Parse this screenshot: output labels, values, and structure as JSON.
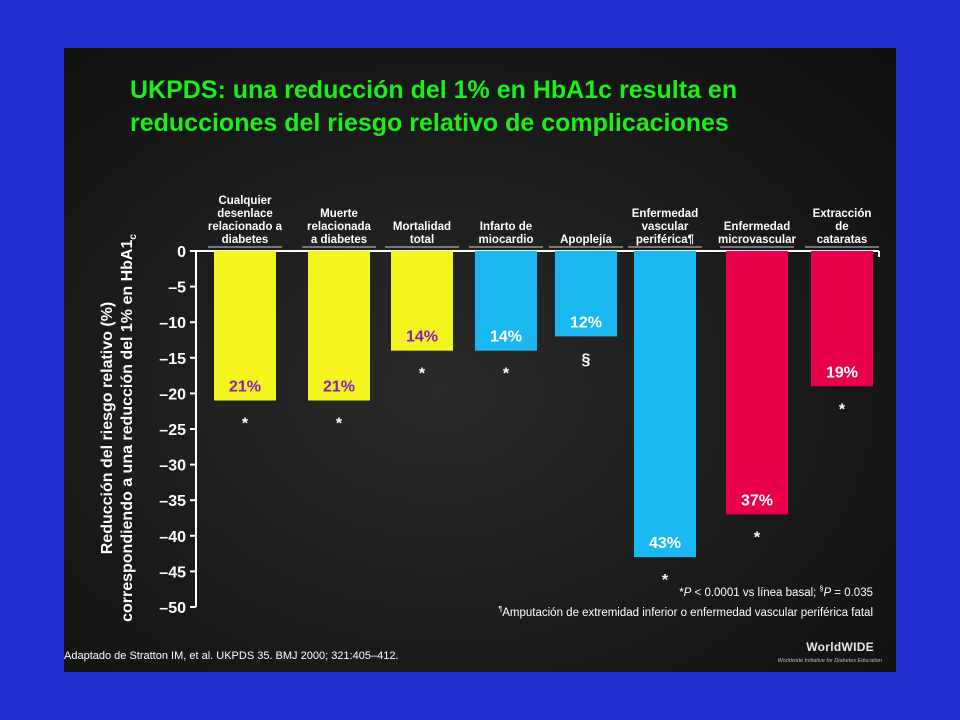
{
  "slide": {
    "title": "UKPDS: una reducción del 1% en HbA1c resulta en reducciones del riesgo relativo de complicaciones",
    "footnote_line1": "*P < 0.0001 vs línea basal; §P = 0.035",
    "footnote_line2": "¶Amputación de extremidad inferior o enfermedad vascular periférica fatal",
    "source": "Adaptado de Stratton IM, et al. UKPDS 35. BMJ 2000; 321:405–412.",
    "logo_text": "WorldWIDE",
    "logo_tagline": "Worldwide Initiative for Diabetes Education"
  },
  "chart_data": {
    "type": "bar",
    "title": "UKPDS: una reducción del 1% en HbA1c resulta en reducciones del riesgo relativo de complicaciones",
    "ylabel": "Reducción del riesgo relativo (%) correspondiendo a una reducción del 1% en HbA1c",
    "ylim": [
      -50,
      0
    ],
    "yticks": [
      0,
      -5,
      -10,
      -15,
      -20,
      -25,
      -30,
      -35,
      -40,
      -45,
      -50
    ],
    "ytick_labels": [
      "0",
      "–5",
      "–10",
      "–15",
      "–20",
      "–25",
      "–30",
      "–35",
      "–40",
      "–45",
      "–50"
    ],
    "categories": [
      [
        "Cualquier",
        "desenlace",
        "relacionado a",
        "diabetes"
      ],
      [
        "Muerte",
        "relacionada",
        "a diabetes"
      ],
      [
        "Mortalidad",
        "total"
      ],
      [
        "Infarto de",
        "miocardio"
      ],
      [
        "Apoplejía"
      ],
      [
        "Enfermedad",
        "vascular",
        "periférica¶"
      ],
      [
        "Enfermedad",
        "microvascular"
      ],
      [
        "Extracción",
        "de",
        "cataratas"
      ]
    ],
    "values": [
      -21,
      -21,
      -14,
      -14,
      -12,
      -43,
      -37,
      -19
    ],
    "data_labels": [
      "21%",
      "21%",
      "14%",
      "14%",
      "12%",
      "43%",
      "37%",
      "19%"
    ],
    "significance": [
      "*",
      "*",
      "*",
      "*",
      "§",
      "*",
      "*",
      "*"
    ],
    "colors": [
      "#f5f51e",
      "#f5f51e",
      "#f5f51e",
      "#1ab8f0",
      "#1ab8f0",
      "#1ab8f0",
      "#e8004a",
      "#e8004a"
    ],
    "label_colors": [
      "#8a1cc8",
      "#8a1cc8",
      "#8a1cc8",
      "#ffffff",
      "#ffffff",
      "#ffffff",
      "#ffffff",
      "#ffffff"
    ],
    "grid": false
  }
}
